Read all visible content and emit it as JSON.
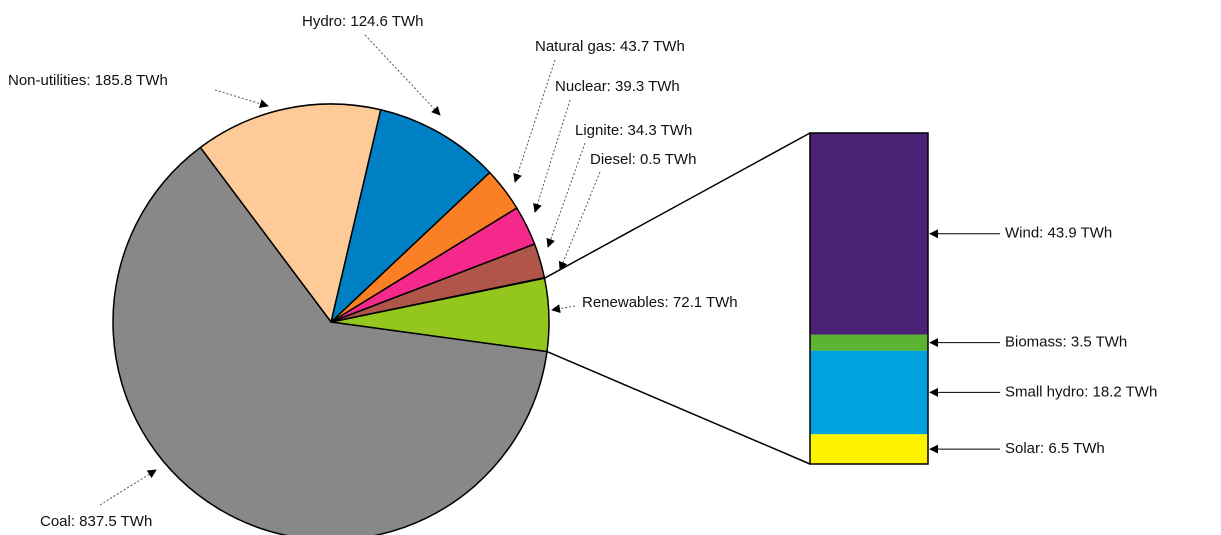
{
  "chart_data": [
    {
      "type": "pie",
      "values": [
        72.1,
        0.5,
        34.3,
        39.3,
        43.7,
        124.6,
        185.8,
        837.5
      ],
      "value_labels": [
        "Renewables: 72.1 TWh",
        "Diesel: 0.5 TWh",
        "Lignite: 34.3 TWh",
        "Nuclear: 39.3 TWh",
        "Natural gas: 43.7 TWh",
        "Hydro: 124.6 TWh",
        "Non-utilities: 185.8 TWh",
        "Coal: 837.5 TWh"
      ],
      "colors": [
        "#93c71e",
        "#a94a3a",
        "#b0554a",
        "#f5288c",
        "#fb8025",
        "#0080c4",
        "#fecb98",
        "#888888"
      ]
    },
    {
      "type": "bar",
      "values": [
        6.5,
        18.2,
        3.5,
        43.9
      ],
      "value_labels": [
        "Solar: 6.5 TWh",
        "Small hydro: 18.2 TWh",
        "Biomass: 3.5 TWh",
        "Wind: 43.9 TWh"
      ],
      "colors": [
        "#fff200",
        "#00a2dd",
        "#5db332",
        "#4a2377"
      ]
    }
  ]
}
